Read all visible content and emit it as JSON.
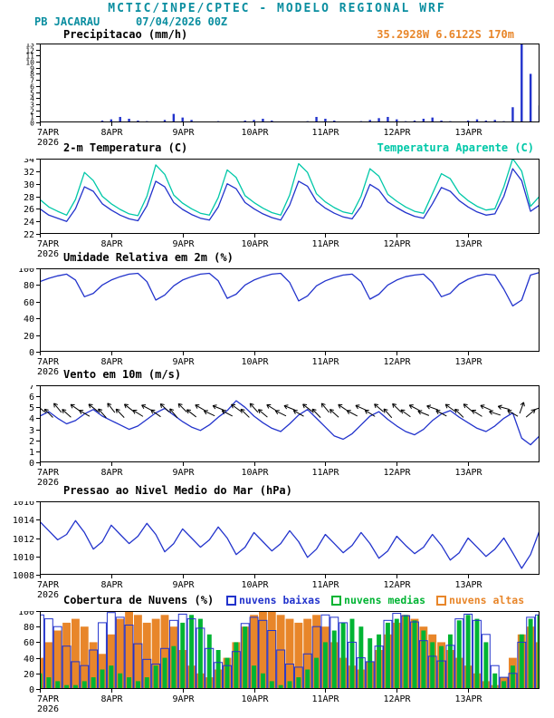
{
  "header": {
    "title": "MCTIC/INPE/CPTEC - MODELO REGIONAL WRF",
    "station": "PB JACARAU",
    "run": "07/04/2026 00Z",
    "location": "35.2928W 6.6122S 170m"
  },
  "colors": {
    "header": "#0a8ea0",
    "accent_orange": "#e8862a",
    "line_blue": "#2233cc",
    "line_cyan": "#00c8a8",
    "green": "#00b433",
    "black": "#000000"
  },
  "chart_data": {
    "type": "meteogram",
    "x": {
      "unit": "hours",
      "min": 0,
      "max": 168,
      "step": 3,
      "day_ticks": [
        {
          "h": 0,
          "label": "7APR",
          "sublabel": "2026"
        },
        {
          "h": 24,
          "label": "8APR"
        },
        {
          "h": 48,
          "label": "9APR"
        },
        {
          "h": 72,
          "label": "10APR"
        },
        {
          "h": 96,
          "label": "11APR"
        },
        {
          "h": 120,
          "label": "12APR"
        },
        {
          "h": 144,
          "label": "13APR"
        }
      ]
    },
    "panels": [
      {
        "id": "precipitation",
        "title": "Precipitacao (mm/h)",
        "type": "bar",
        "ymin": 0,
        "ymax": 13,
        "yticks": [
          0,
          1,
          2,
          3,
          4,
          5,
          6,
          7,
          8,
          9,
          10,
          11,
          12,
          13
        ],
        "color": "#2233cc",
        "values": [
          0.2,
          0,
          0.1,
          0,
          0,
          0,
          0.1,
          0.3,
          0.5,
          0.9,
          0.6,
          0.3,
          0.2,
          0,
          0.4,
          1.4,
          0.8,
          0.4,
          0.1,
          0,
          0.2,
          0.1,
          0,
          0.3,
          0.4,
          0.6,
          0.3,
          0.1,
          0,
          0,
          0.2,
          0.9,
          0.6,
          0.3,
          0.1,
          0,
          0.2,
          0.4,
          0.7,
          0.9,
          0.5,
          0.2,
          0.3,
          0.6,
          0.8,
          0.3,
          0.2,
          0.1,
          0.3,
          0.5,
          0.3,
          0.4,
          0.2,
          2.5,
          13,
          8,
          2.8
        ]
      },
      {
        "id": "temperature",
        "title": "2-m Temperatura (C)",
        "title_right": "Temperatura Aparente (C)",
        "type": "line",
        "ymin": 22,
        "ymax": 34,
        "yticks": [
          22,
          24,
          26,
          28,
          30,
          32,
          34
        ],
        "series": [
          {
            "name": "2-m Temperatura (C)",
            "color": "#2233cc",
            "values": [
              26.0,
              25.0,
              24.5,
              24.0,
              26.0,
              29.5,
              28.8,
              26.8,
              25.8,
              25.0,
              24.4,
              24.1,
              26.5,
              30.4,
              29.5,
              27.0,
              25.9,
              25.1,
              24.5,
              24.2,
              26.3,
              30.0,
              29.2,
              27.0,
              26.0,
              25.2,
              24.6,
              24.2,
              26.6,
              30.4,
              29.6,
              27.2,
              26.1,
              25.3,
              24.7,
              24.4,
              26.4,
              29.9,
              29.0,
              27.1,
              26.2,
              25.4,
              24.8,
              24.5,
              26.8,
              29.4,
              28.8,
              27.3,
              26.3,
              25.5,
              25.0,
              25.2,
              28.0,
              32.4,
              30.5,
              25.6,
              26.6
            ]
          },
          {
            "name": "Temperatura Aparente (C)",
            "color": "#00c8a8",
            "values": [
              27.5,
              26.3,
              25.6,
              25.0,
              27.5,
              31.8,
              30.5,
              28.0,
              26.8,
              25.9,
              25.2,
              24.9,
              28.0,
              33.0,
              31.5,
              28.2,
              26.9,
              26.0,
              25.3,
              25.0,
              27.8,
              32.2,
              31.0,
              28.1,
              27.0,
              26.1,
              25.4,
              25.0,
              28.2,
              33.2,
              31.8,
              28.4,
              27.1,
              26.2,
              25.5,
              25.2,
              28.0,
              32.4,
              31.2,
              28.3,
              27.2,
              26.3,
              25.6,
              25.3,
              28.4,
              31.6,
              30.8,
              28.5,
              27.3,
              26.4,
              25.8,
              26.0,
              29.5,
              34.0,
              32.0,
              26.4,
              28.0
            ]
          }
        ]
      },
      {
        "id": "relative-humidity",
        "title": "Umidade Relativa em 2m (%)",
        "type": "line",
        "ymin": 0,
        "ymax": 100,
        "yticks": [
          0,
          20,
          40,
          60,
          80,
          100
        ],
        "series": [
          {
            "name": "Umidade Relativa em 2m (%)",
            "color": "#2233cc",
            "values": [
              84,
              88,
              91,
              93,
              86,
              66,
              70,
              80,
              86,
              90,
              93,
              94,
              84,
              62,
              68,
              79,
              86,
              90,
              93,
              94,
              85,
              64,
              69,
              80,
              86,
              90,
              93,
              94,
              83,
              61,
              67,
              79,
              85,
              89,
              92,
              93,
              84,
              63,
              69,
              80,
              86,
              90,
              92,
              93,
              83,
              66,
              70,
              81,
              87,
              91,
              93,
              92,
              75,
              55,
              62,
              92,
              95
            ]
          }
        ]
      },
      {
        "id": "wind",
        "title": "Vento em 10m (m/s)",
        "type": "wind",
        "ymin": 0,
        "ymax": 7,
        "yticks": [
          0,
          1,
          2,
          3,
          4,
          5,
          6,
          7
        ],
        "color": "#2233cc",
        "arrow_color": "#000000",
        "arrow_y": 4.7,
        "speed": [
          4.2,
          4.6,
          4.0,
          3.5,
          3.8,
          4.4,
          4.8,
          4.2,
          3.8,
          3.4,
          3.0,
          3.3,
          3.9,
          4.5,
          4.9,
          4.3,
          3.7,
          3.2,
          2.9,
          3.4,
          4.1,
          4.7,
          5.6,
          5.0,
          4.2,
          3.6,
          3.1,
          2.8,
          3.5,
          4.3,
          4.8,
          4.0,
          3.2,
          2.4,
          2.1,
          2.6,
          3.4,
          4.2,
          4.6,
          3.9,
          3.3,
          2.8,
          2.5,
          3.0,
          3.8,
          4.4,
          4.7,
          4.1,
          3.6,
          3.1,
          2.8,
          3.3,
          4.0,
          4.5,
          2.2,
          1.6,
          2.4
        ],
        "dir_from": [
          130,
          135,
          140,
          132,
          125,
          120,
          128,
          138,
          142,
          136,
          128,
          122,
          118,
          125,
          133,
          140,
          135,
          128,
          120,
          115,
          112,
          118,
          126,
          134,
          138,
          130,
          122,
          116,
          112,
          120,
          128,
          136,
          140,
          132,
          124,
          118,
          114,
          122,
          130,
          138,
          134,
          126,
          118,
          112,
          110,
          118,
          126,
          134,
          130,
          122,
          114,
          108,
          105,
          120,
          200,
          230,
          250
        ]
      },
      {
        "id": "mslp",
        "title": "Pressao ao Nivel Medio do Mar (hPa)",
        "type": "line",
        "ymin": 1008,
        "ymax": 1016,
        "yticks": [
          1008,
          1010,
          1012,
          1014,
          1016
        ],
        "series": [
          {
            "name": "Pressao ao Nivel Medio do Mar (hPa)",
            "color": "#2233cc",
            "values": [
              1013.8,
              1012.8,
              1011.8,
              1012.4,
              1013.9,
              1012.6,
              1010.8,
              1011.6,
              1013.4,
              1012.4,
              1011.4,
              1012.2,
              1013.6,
              1012.4,
              1010.5,
              1011.4,
              1013.0,
              1012.0,
              1011.0,
              1011.8,
              1013.2,
              1012.0,
              1010.2,
              1011.0,
              1012.6,
              1011.6,
              1010.6,
              1011.4,
              1012.8,
              1011.6,
              1009.9,
              1010.8,
              1012.4,
              1011.4,
              1010.4,
              1011.2,
              1012.6,
              1011.4,
              1009.8,
              1010.6,
              1012.2,
              1011.2,
              1010.3,
              1011.0,
              1012.4,
              1011.2,
              1009.6,
              1010.4,
              1012.0,
              1011.0,
              1010.0,
              1010.8,
              1012.0,
              1010.4,
              1008.7,
              1010.2,
              1012.8
            ]
          }
        ]
      },
      {
        "id": "cloud-cover",
        "title": "Cobertura de Nuvens (%)",
        "type": "cloudbar",
        "ymin": 0,
        "ymax": 100,
        "yticks": [
          0,
          20,
          40,
          60,
          80,
          100
        ],
        "legend": [
          {
            "label": "nuvens baixas",
            "color": "#2233cc"
          },
          {
            "label": "nuvens medias",
            "color": "#00b433"
          },
          {
            "label": "nuvens altas",
            "color": "#e8862a"
          }
        ],
        "series": [
          {
            "name": "nuvens altas",
            "color": "#e8862a",
            "style": "fill",
            "width_frac": 0.9,
            "values": [
              40,
              60,
              75,
              85,
              90,
              80,
              60,
              45,
              70,
              90,
              100,
              95,
              85,
              90,
              95,
              80,
              50,
              30,
              20,
              15,
              25,
              40,
              60,
              80,
              95,
              100,
              100,
              95,
              90,
              85,
              90,
              95,
              80,
              60,
              40,
              30,
              25,
              35,
              50,
              70,
              85,
              95,
              90,
              80,
              70,
              60,
              50,
              40,
              30,
              20,
              10,
              5,
              15,
              40,
              70,
              80,
              60
            ]
          },
          {
            "name": "nuvens medias",
            "color": "#00b433",
            "style": "fill",
            "width_frac": 0.5,
            "values": [
              20,
              15,
              10,
              5,
              5,
              10,
              15,
              25,
              30,
              20,
              15,
              10,
              15,
              30,
              40,
              55,
              85,
              95,
              90,
              70,
              50,
              40,
              60,
              80,
              30,
              20,
              10,
              5,
              10,
              15,
              25,
              40,
              60,
              75,
              85,
              90,
              80,
              65,
              70,
              85,
              90,
              95,
              88,
              75,
              60,
              55,
              70,
              88,
              95,
              90,
              60,
              20,
              10,
              30,
              70,
              90,
              95
            ]
          },
          {
            "name": "nuvens baixas",
            "color": "#2233cc",
            "style": "outline",
            "width_frac": 0.9,
            "values": [
              95,
              90,
              80,
              55,
              35,
              30,
              50,
              85,
              98,
              92,
              82,
              58,
              38,
              32,
              52,
              88,
              96,
              90,
              78,
              52,
              34,
              30,
              48,
              84,
              92,
              88,
              75,
              50,
              32,
              28,
              45,
              80,
              95,
              92,
              85,
              60,
              40,
              35,
              55,
              88,
              97,
              94,
              86,
              62,
              42,
              36,
              56,
              90,
              96,
              88,
              70,
              30,
              15,
              20,
              60,
              92,
              95
            ]
          }
        ]
      }
    ]
  }
}
